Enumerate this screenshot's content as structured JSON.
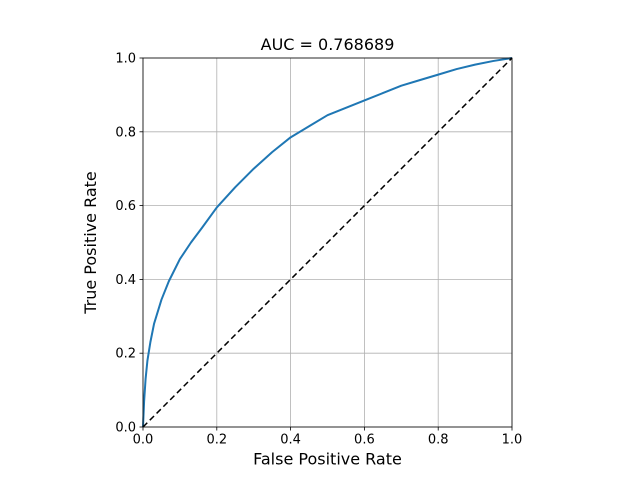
{
  "chart_data": {
    "type": "line",
    "title": "AUC = 0.768689",
    "xlabel": "False Positive Rate",
    "ylabel": "True Positive Rate",
    "xlim": [
      0,
      1
    ],
    "ylim": [
      0,
      1
    ],
    "grid": true,
    "grid_color": "#b0b0b0",
    "background_color": "#ffffff",
    "xticks": [
      0,
      0.2,
      0.4,
      0.6,
      0.8,
      1.0
    ],
    "xtick_labels": [
      "0.0",
      "0.2",
      "0.4",
      "0.6",
      "0.8",
      "1.0"
    ],
    "yticks": [
      0,
      0.2,
      0.4,
      0.6,
      0.8,
      1.0
    ],
    "ytick_labels": [
      "0.0",
      "0.2",
      "0.4",
      "0.6",
      "0.8",
      "1.0"
    ],
    "legend": "none",
    "series": [
      {
        "name": "roc-curve",
        "color": "#1f77b4",
        "style": "solid",
        "width": 2,
        "x": [
          0,
          0.003,
          0.007,
          0.012,
          0.02,
          0.03,
          0.05,
          0.07,
          0.1,
          0.13,
          0.16,
          0.2,
          0.25,
          0.3,
          0.35,
          0.4,
          0.45,
          0.5,
          0.55,
          0.6,
          0.65,
          0.7,
          0.75,
          0.8,
          0.85,
          0.9,
          0.95,
          1.0
        ],
        "y": [
          0,
          0.07,
          0.13,
          0.18,
          0.23,
          0.28,
          0.345,
          0.395,
          0.455,
          0.5,
          0.54,
          0.595,
          0.65,
          0.7,
          0.745,
          0.785,
          0.815,
          0.845,
          0.865,
          0.885,
          0.905,
          0.925,
          0.94,
          0.955,
          0.97,
          0.982,
          0.992,
          1.0
        ]
      },
      {
        "name": "chance-diagonal",
        "color": "#000000",
        "style": "dashed",
        "width": 1.5,
        "x": [
          0,
          1
        ],
        "y": [
          0,
          1
        ]
      }
    ]
  }
}
